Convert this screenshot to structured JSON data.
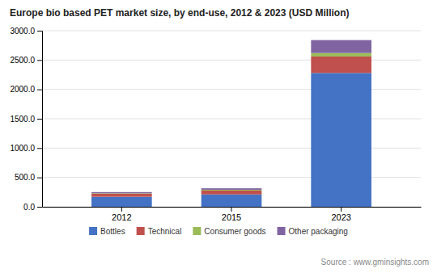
{
  "chart_data": {
    "type": "bar",
    "title": "Europe bio based PET market size, by end-use, 2012 & 2023 (USD Million)",
    "categories": [
      "2012",
      "2015",
      "2023"
    ],
    "series": [
      {
        "name": "Bottles",
        "color": "#4472c4",
        "values": [
          170,
          210,
          2280
        ]
      },
      {
        "name": "Technical",
        "color": "#c0504d",
        "values": [
          50,
          65,
          280
        ]
      },
      {
        "name": "Consumer goods",
        "color": "#9bbb59",
        "values": [
          10,
          15,
          60
        ]
      },
      {
        "name": "Other packaging",
        "color": "#8064a2",
        "values": [
          20,
          25,
          220
        ]
      }
    ],
    "stacked": true,
    "ylim": [
      0,
      3000
    ],
    "yticks": [
      {
        "value": 0,
        "label": "0.0"
      },
      {
        "value": 500,
        "label": "500.0"
      },
      {
        "value": 1000,
        "label": "1000.0"
      },
      {
        "value": 1500,
        "label": "1500.0"
      },
      {
        "value": 2000,
        "label": "2000.0"
      },
      {
        "value": 2500,
        "label": "2500.0"
      },
      {
        "value": 3000,
        "label": "3000.0"
      }
    ],
    "grid": true,
    "legend": "bottom",
    "annotations": [
      "Source : www.gminsights.com"
    ]
  }
}
